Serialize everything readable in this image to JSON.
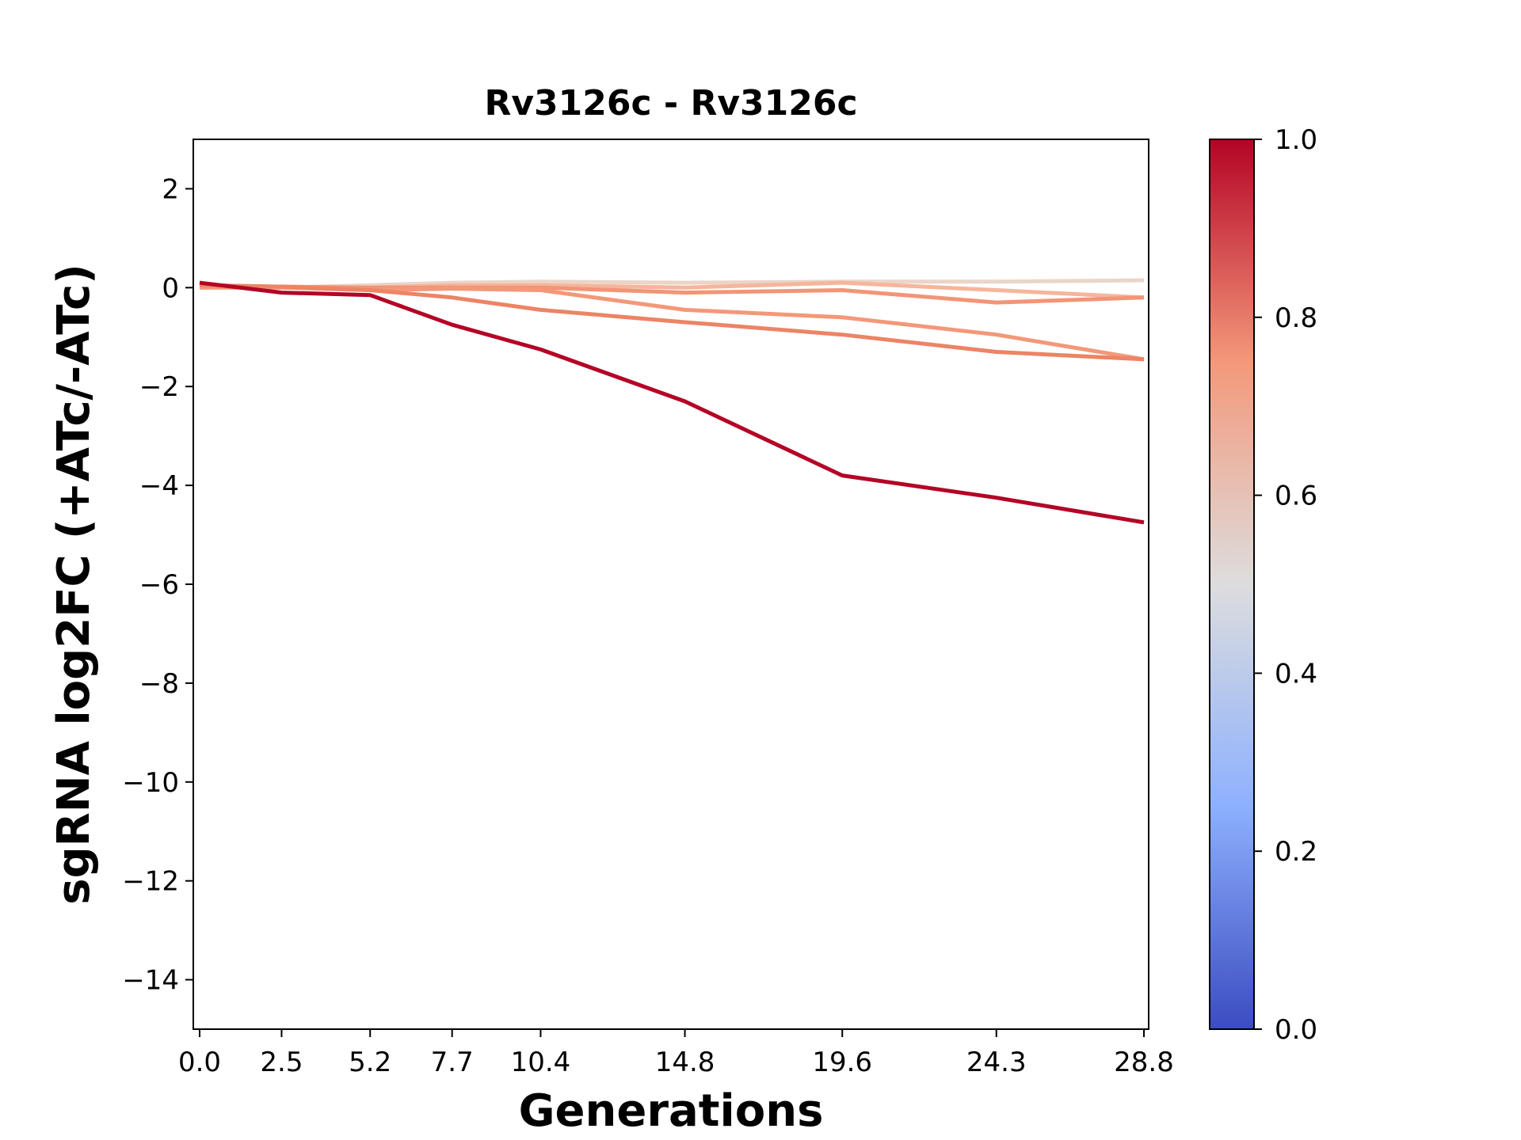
{
  "chart_data": {
    "type": "line",
    "title": "Rv3126c - Rv3126c",
    "xlabel": "Generations",
    "ylabel": "sgRNA log2FC (+ATc/-ATc)",
    "x": [
      0.0,
      2.5,
      5.2,
      7.7,
      10.4,
      14.8,
      19.6,
      24.3,
      28.8
    ],
    "x_tick_labels": [
      "0.0",
      "2.5",
      "5.2",
      "7.7",
      "10.4",
      "14.8",
      "19.6",
      "24.3",
      "28.8"
    ],
    "ylim": [
      -15,
      3
    ],
    "y_ticks": [
      2,
      0,
      -2,
      -4,
      -6,
      -8,
      -10,
      -12,
      -14
    ],
    "y_tick_labels": [
      "2",
      "0",
      "−2",
      "−4",
      "−6",
      "−8",
      "−10",
      "−12",
      "−14"
    ],
    "grid": false,
    "colormap": "coolwarm",
    "colorbar": {
      "range": [
        0.0,
        1.0
      ],
      "ticks": [
        0.0,
        0.2,
        0.4,
        0.6,
        0.8,
        1.0
      ],
      "tick_labels": [
        "0.0",
        "0.2",
        "0.4",
        "0.6",
        "0.8",
        "1.0"
      ],
      "stops": [
        {
          "value": 0.0,
          "color": "#3b4cc0"
        },
        {
          "value": 0.25,
          "color": "#8db0fe"
        },
        {
          "value": 0.5,
          "color": "#dddddd"
        },
        {
          "value": 0.75,
          "color": "#f4987a"
        },
        {
          "value": 1.0,
          "color": "#b40426"
        }
      ]
    },
    "series": [
      {
        "color_value": 0.55,
        "color": "#ead5c9",
        "values": [
          0.0,
          0.0,
          0.05,
          0.1,
          0.12,
          0.1,
          0.12,
          0.12,
          0.15
        ]
      },
      {
        "color_value": 0.7,
        "color": "#f5b69b",
        "values": [
          0.0,
          0.02,
          0.0,
          0.05,
          0.05,
          0.0,
          0.1,
          -0.05,
          -0.2
        ]
      },
      {
        "color_value": 0.76,
        "color": "#f29576",
        "values": [
          0.05,
          0.02,
          0.0,
          0.0,
          0.0,
          -0.1,
          -0.05,
          -0.3,
          -0.2
        ]
      },
      {
        "color_value": 0.75,
        "color": "#f39879",
        "values": [
          0.0,
          0.0,
          -0.05,
          -0.02,
          -0.05,
          -0.45,
          -0.6,
          -0.95,
          -1.45
        ]
      },
      {
        "color_value": 0.8,
        "color": "#ec8465",
        "values": [
          0.05,
          0.02,
          -0.05,
          -0.2,
          -0.45,
          -0.7,
          -0.95,
          -1.3,
          -1.45
        ]
      },
      {
        "color_value": 0.99,
        "color": "#b40426",
        "values": [
          0.1,
          -0.1,
          -0.15,
          -0.75,
          -1.25,
          -2.3,
          -3.8,
          -4.25,
          -4.75
        ]
      }
    ]
  }
}
